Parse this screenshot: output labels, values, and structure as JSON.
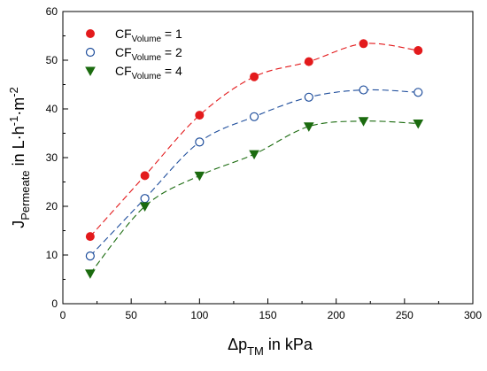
{
  "chart_data": {
    "type": "scatter",
    "x": [
      20,
      60,
      100,
      140,
      180,
      220,
      260
    ],
    "xlim": [
      0,
      300
    ],
    "ylim": [
      0,
      60
    ],
    "xticks": [
      "0",
      "50",
      "100",
      "150",
      "200",
      "250",
      "300"
    ],
    "yticks": [
      "0",
      "10",
      "20",
      "30",
      "40",
      "50",
      "60"
    ],
    "xlabel": {
      "base": "Δp",
      "sub": "TM",
      "suffix": " in kPa"
    },
    "ylabel": {
      "base": "J",
      "sub": "Permeate",
      "suffix": " in L·h",
      "sup1": "-1",
      "mid": "·m",
      "sup2": "-2"
    },
    "grid": false,
    "legend_position": "top-left",
    "lines": "dashed connecting lines",
    "series": [
      {
        "name": "CF",
        "name_sub": "Volume",
        "name_suffix": " = 1",
        "marker": "filled-circle",
        "color": "#e31a1c",
        "values": [
          13.8,
          26.3,
          38.7,
          46.6,
          49.7,
          53.4,
          52.0
        ]
      },
      {
        "name": "CF",
        "name_sub": "Volume",
        "name_suffix": " = 2",
        "marker": "open-circle",
        "color": "#1f4e9c",
        "values": [
          9.8,
          21.6,
          33.2,
          38.4,
          42.4,
          43.9,
          43.4
        ]
      },
      {
        "name": "CF",
        "name_sub": "Volume",
        "name_suffix": " = 4",
        "marker": "filled-triangle-down",
        "color": "#1b6b0f",
        "values": [
          6.2,
          20.0,
          26.3,
          30.7,
          36.4,
          37.5,
          37.0
        ]
      }
    ]
  }
}
